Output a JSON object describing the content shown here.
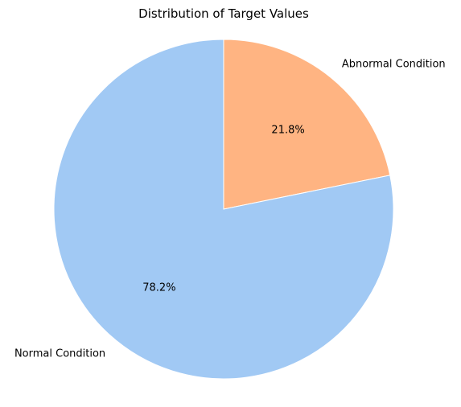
{
  "chart_data": {
    "type": "pie",
    "title": "Distribution of Target Values",
    "slices": [
      {
        "label": "Abnormal Condition",
        "value": 21.8,
        "pct_label": "21.8%",
        "color": "#FFB482"
      },
      {
        "label": "Normal Condition",
        "value": 78.2,
        "pct_label": "78.2%",
        "color": "#A1C9F4"
      }
    ],
    "start_angle_deg": 90,
    "direction": "clockwise",
    "edge_color": "#ffffff",
    "legend": "none"
  }
}
